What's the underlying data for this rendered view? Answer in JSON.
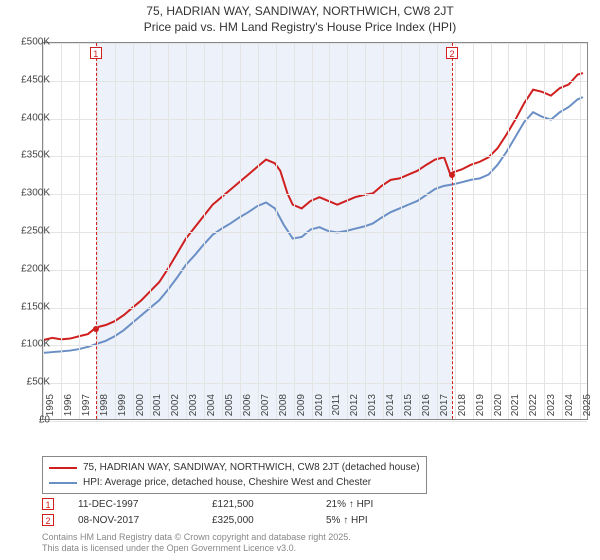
{
  "title": "75, HADRIAN WAY, SANDIWAY, NORTHWICH, CW8 2JT",
  "subtitle": "Price paid vs. HM Land Registry's House Price Index (HPI)",
  "chart": {
    "type": "line",
    "plot_bg": "#ffffff",
    "border_color": "#888888",
    "grid_color": "#e4e4e4",
    "x": {
      "min": 1995,
      "max": 2025.5,
      "ticks": [
        1995,
        1996,
        1997,
        1998,
        1999,
        2000,
        2001,
        2002,
        2003,
        2004,
        2005,
        2006,
        2007,
        2008,
        2009,
        2010,
        2011,
        2012,
        2013,
        2014,
        2015,
        2016,
        2017,
        2018,
        2019,
        2020,
        2021,
        2022,
        2023,
        2024,
        2025
      ]
    },
    "y": {
      "min": 0,
      "max": 500000,
      "ticks": [
        0,
        50000,
        100000,
        150000,
        200000,
        250000,
        300000,
        350000,
        400000,
        450000,
        500000
      ],
      "tick_labels": [
        "£0",
        "£50K",
        "£100K",
        "£150K",
        "£200K",
        "£250K",
        "£300K",
        "£350K",
        "£400K",
        "£450K",
        "£500K"
      ]
    },
    "tick_fontsize": 10,
    "shade": {
      "from": 1997.95,
      "to": 2017.85,
      "color": "rgba(220,230,245,0.55)"
    },
    "markers": [
      {
        "n": "1",
        "x": 1997.95,
        "color": "#d01f1f",
        "dot_y": 121500
      },
      {
        "n": "2",
        "x": 2017.85,
        "color": "#d01f1f",
        "dot_y": 325000
      }
    ],
    "series": [
      {
        "name": "subject",
        "color": "#d01f1f",
        "width": 2,
        "points": [
          [
            1995,
            105000
          ],
          [
            1995.5,
            108000
          ],
          [
            1996,
            106000
          ],
          [
            1996.5,
            107000
          ],
          [
            1997,
            110000
          ],
          [
            1997.5,
            113000
          ],
          [
            1997.95,
            121500
          ],
          [
            1998.5,
            125000
          ],
          [
            1999,
            130000
          ],
          [
            1999.5,
            138000
          ],
          [
            2000,
            148000
          ],
          [
            2000.5,
            158000
          ],
          [
            2001,
            170000
          ],
          [
            2001.5,
            182000
          ],
          [
            2002,
            200000
          ],
          [
            2002.5,
            220000
          ],
          [
            2003,
            240000
          ],
          [
            2003.5,
            255000
          ],
          [
            2004,
            270000
          ],
          [
            2004.5,
            285000
          ],
          [
            2005,
            295000
          ],
          [
            2005.5,
            305000
          ],
          [
            2006,
            315000
          ],
          [
            2006.5,
            325000
          ],
          [
            2007,
            335000
          ],
          [
            2007.5,
            345000
          ],
          [
            2008,
            340000
          ],
          [
            2008.3,
            330000
          ],
          [
            2008.7,
            300000
          ],
          [
            2009,
            285000
          ],
          [
            2009.5,
            280000
          ],
          [
            2010,
            290000
          ],
          [
            2010.5,
            295000
          ],
          [
            2011,
            290000
          ],
          [
            2011.5,
            285000
          ],
          [
            2012,
            290000
          ],
          [
            2012.5,
            295000
          ],
          [
            2013,
            298000
          ],
          [
            2013.5,
            300000
          ],
          [
            2014,
            310000
          ],
          [
            2014.5,
            318000
          ],
          [
            2015,
            320000
          ],
          [
            2015.5,
            325000
          ],
          [
            2016,
            330000
          ],
          [
            2016.5,
            338000
          ],
          [
            2017,
            345000
          ],
          [
            2017.5,
            348000
          ],
          [
            2017.85,
            325000
          ],
          [
            2018,
            328000
          ],
          [
            2018.5,
            332000
          ],
          [
            2019,
            338000
          ],
          [
            2019.5,
            342000
          ],
          [
            2020,
            348000
          ],
          [
            2020.5,
            360000
          ],
          [
            2021,
            378000
          ],
          [
            2021.5,
            398000
          ],
          [
            2022,
            420000
          ],
          [
            2022.5,
            438000
          ],
          [
            2023,
            435000
          ],
          [
            2023.5,
            430000
          ],
          [
            2024,
            440000
          ],
          [
            2024.5,
            445000
          ],
          [
            2025,
            458000
          ],
          [
            2025.3,
            460000
          ]
        ]
      },
      {
        "name": "hpi",
        "color": "#6a8fc5",
        "width": 2,
        "points": [
          [
            1995,
            88000
          ],
          [
            1995.5,
            89000
          ],
          [
            1996,
            90000
          ],
          [
            1996.5,
            91000
          ],
          [
            1997,
            93000
          ],
          [
            1997.5,
            96000
          ],
          [
            1998,
            100000
          ],
          [
            1998.5,
            104000
          ],
          [
            1999,
            110000
          ],
          [
            1999.5,
            118000
          ],
          [
            2000,
            128000
          ],
          [
            2000.5,
            138000
          ],
          [
            2001,
            148000
          ],
          [
            2001.5,
            158000
          ],
          [
            2002,
            172000
          ],
          [
            2002.5,
            188000
          ],
          [
            2003,
            205000
          ],
          [
            2003.5,
            218000
          ],
          [
            2004,
            232000
          ],
          [
            2004.5,
            245000
          ],
          [
            2005,
            253000
          ],
          [
            2005.5,
            260000
          ],
          [
            2006,
            268000
          ],
          [
            2006.5,
            275000
          ],
          [
            2007,
            283000
          ],
          [
            2007.5,
            288000
          ],
          [
            2008,
            280000
          ],
          [
            2008.5,
            258000
          ],
          [
            2009,
            240000
          ],
          [
            2009.5,
            242000
          ],
          [
            2010,
            252000
          ],
          [
            2010.5,
            255000
          ],
          [
            2011,
            250000
          ],
          [
            2011.5,
            248000
          ],
          [
            2012,
            250000
          ],
          [
            2012.5,
            253000
          ],
          [
            2013,
            256000
          ],
          [
            2013.5,
            260000
          ],
          [
            2014,
            268000
          ],
          [
            2014.5,
            275000
          ],
          [
            2015,
            280000
          ],
          [
            2015.5,
            285000
          ],
          [
            2016,
            290000
          ],
          [
            2016.5,
            298000
          ],
          [
            2017,
            306000
          ],
          [
            2017.5,
            310000
          ],
          [
            2018,
            312000
          ],
          [
            2018.5,
            315000
          ],
          [
            2019,
            318000
          ],
          [
            2019.5,
            320000
          ],
          [
            2020,
            325000
          ],
          [
            2020.5,
            338000
          ],
          [
            2021,
            355000
          ],
          [
            2021.5,
            375000
          ],
          [
            2022,
            395000
          ],
          [
            2022.5,
            408000
          ],
          [
            2023,
            402000
          ],
          [
            2023.5,
            398000
          ],
          [
            2024,
            408000
          ],
          [
            2024.5,
            415000
          ],
          [
            2025,
            425000
          ],
          [
            2025.3,
            428000
          ]
        ]
      }
    ]
  },
  "legend": {
    "items": [
      {
        "color": "#d01f1f",
        "label": "75, HADRIAN WAY, SANDIWAY, NORTHWICH, CW8 2JT (detached house)"
      },
      {
        "color": "#6a8fc5",
        "label": "HPI: Average price, detached house, Cheshire West and Chester"
      }
    ]
  },
  "transactions": [
    {
      "n": "1",
      "color": "#d01f1f",
      "date": "11-DEC-1997",
      "price": "£121,500",
      "delta": "21% ↑ HPI"
    },
    {
      "n": "2",
      "color": "#d01f1f",
      "date": "08-NOV-2017",
      "price": "£325,000",
      "delta": "5% ↑ HPI"
    }
  ],
  "footer1": "Contains HM Land Registry data © Crown copyright and database right 2025.",
  "footer2": "This data is licensed under the Open Government Licence v3.0."
}
